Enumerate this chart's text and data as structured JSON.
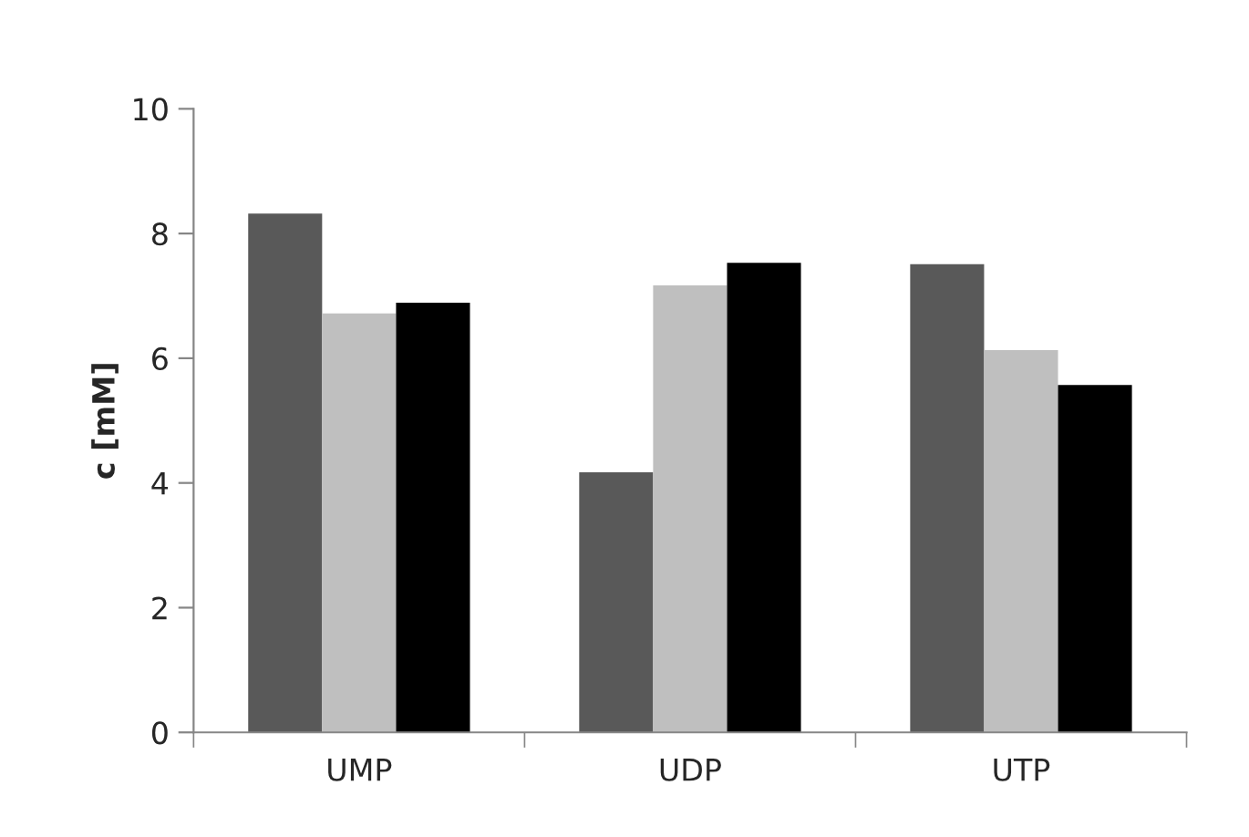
{
  "chart_data": {
    "type": "bar",
    "ylabel": "c [mM]",
    "categories": [
      "UMP",
      "UDP",
      "UTP"
    ],
    "series": [
      {
        "color": "#595959",
        "values": [
          8.32,
          4.17,
          7.51
        ]
      },
      {
        "color": "#bfbfbf",
        "values": [
          6.72,
          7.17,
          6.13
        ]
      },
      {
        "color": "#000000",
        "values": [
          6.89,
          7.53,
          5.57
        ]
      }
    ],
    "ylim": [
      0,
      10
    ],
    "yticks": [
      0,
      2,
      4,
      6,
      8,
      10
    ],
    "grid": false,
    "legend": false
  }
}
